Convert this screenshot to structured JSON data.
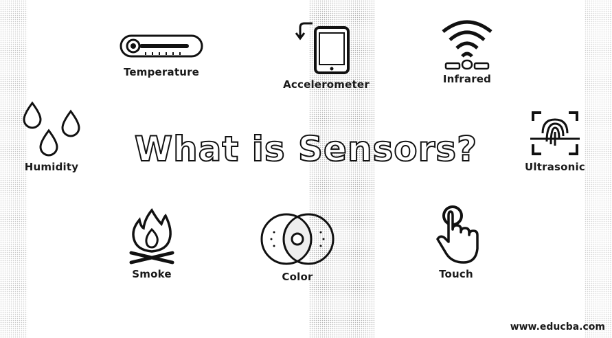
{
  "title": "What is Sensors?",
  "watermark": "www.educba.com",
  "sensors": [
    {
      "label": "Temperature",
      "icon": "thermometer-icon"
    },
    {
      "label": "Accelerometer",
      "icon": "tablet-rotate-icon"
    },
    {
      "label": "Infrared",
      "icon": "wifi-signal-icon"
    },
    {
      "label": "Humidity",
      "icon": "water-drops-icon"
    },
    {
      "label": "Ultrasonic",
      "icon": "fingerprint-scan-icon"
    },
    {
      "label": "Smoke",
      "icon": "campfire-icon"
    },
    {
      "label": "Color",
      "icon": "color-circles-icon"
    },
    {
      "label": "Touch",
      "icon": "tap-hand-icon"
    }
  ]
}
